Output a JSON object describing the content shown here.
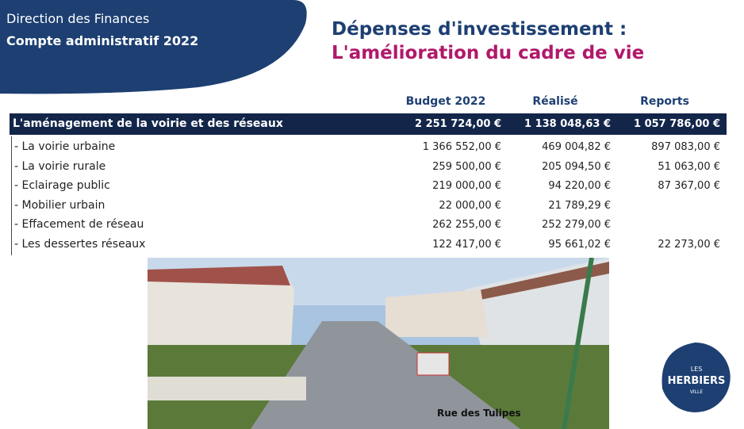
{
  "header": {
    "department": "Direction des Finances",
    "subtitle": "Compte administratif 2022"
  },
  "title": {
    "line1": "Dépenses d'investissement :",
    "line2": "L'amélioration du cadre de vie"
  },
  "table": {
    "columns": [
      "Budget 2022",
      "Réalisé",
      "Reports"
    ],
    "total": {
      "label": "L'aménagement de la voirie et des réseaux",
      "values": [
        "2 251 724,00 €",
        "1 138 048,63 €",
        "1 057 786,00 €"
      ]
    },
    "rows": [
      {
        "label": "- La voirie urbaine",
        "values": [
          "1 366 552,00 €",
          "469 004,82 €",
          "897 083,00 €"
        ]
      },
      {
        "label": "- La voirie rurale",
        "values": [
          "259 500,00 €",
          "205 094,50 €",
          "51 063,00 €"
        ]
      },
      {
        "label": "- Eclairage public",
        "values": [
          "219 000,00 €",
          "94 220,00 €",
          "87 367,00 €"
        ]
      },
      {
        "label": "- Mobilier urbain",
        "values": [
          "22 000,00 €",
          "21 789,29 €",
          null
        ]
      },
      {
        "label": "- Effacement de réseau",
        "values": [
          "262 255,00 €",
          "252 279,00 €",
          null
        ]
      },
      {
        "label": "- Les dessertes réseaux",
        "values": [
          "122 417,00 €",
          "95 661,02 €",
          "22 273,00 €"
        ]
      }
    ]
  },
  "photo": {
    "caption": "Rue des Tulipes"
  },
  "logo": {
    "top": "LES",
    "name": "HERBIERS",
    "bottom": "VILLE"
  }
}
